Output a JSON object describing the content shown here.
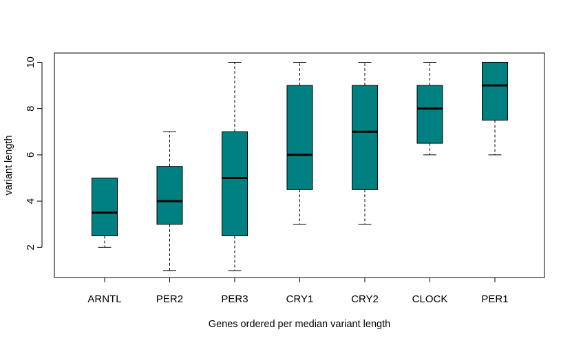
{
  "chart_data": {
    "type": "box",
    "title": "",
    "xlabel": "Genes ordered per median variant length",
    "ylabel": "variant length",
    "ylim": [
      0.7,
      10.4
    ],
    "yticks": [
      2,
      4,
      6,
      8,
      10
    ],
    "categories": [
      "ARNTL",
      "PER2",
      "PER3",
      "CRY1",
      "CRY2",
      "CLOCK",
      "PER1"
    ],
    "boxes": [
      {
        "min": 2,
        "q1": 2.5,
        "median": 3.5,
        "q3": 5,
        "max": 5
      },
      {
        "min": 1,
        "q1": 3,
        "median": 4,
        "q3": 5.5,
        "max": 7
      },
      {
        "min": 1,
        "q1": 2.5,
        "median": 5,
        "q3": 7,
        "max": 10
      },
      {
        "min": 3,
        "q1": 4.5,
        "median": 6,
        "q3": 9,
        "max": 10
      },
      {
        "min": 3,
        "q1": 4.5,
        "median": 7,
        "q3": 9,
        "max": 10
      },
      {
        "min": 6,
        "q1": 6.5,
        "median": 8,
        "q3": 9,
        "max": 10
      },
      {
        "min": 6,
        "q1": 7.5,
        "median": 9,
        "q3": 10,
        "max": 10
      }
    ],
    "box_color": "#008080",
    "grid": false,
    "legend": "none"
  }
}
